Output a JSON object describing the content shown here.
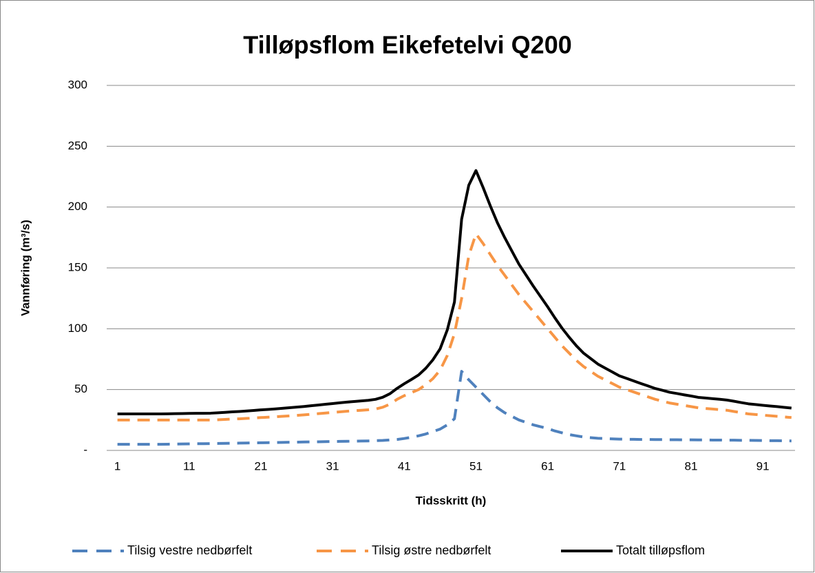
{
  "chart_data": {
    "type": "line",
    "title": "Tilløpsflom Eikefetelvi Q200",
    "x_label": "Tidsskritt (h)",
    "y_label": "Vannføring (m³/s)",
    "x": [
      1,
      2,
      3,
      4,
      5,
      6,
      7,
      8,
      9,
      10,
      11,
      12,
      13,
      14,
      15,
      16,
      17,
      18,
      19,
      20,
      21,
      22,
      23,
      24,
      25,
      26,
      27,
      28,
      29,
      30,
      31,
      32,
      33,
      34,
      35,
      36,
      37,
      38,
      39,
      40,
      41,
      42,
      43,
      44,
      45,
      46,
      47,
      48,
      49,
      50,
      51,
      52,
      53,
      54,
      55,
      56,
      57,
      58,
      59,
      60,
      61,
      62,
      63,
      64,
      65,
      66,
      67,
      68,
      69,
      70,
      71,
      72,
      73,
      74,
      75,
      76,
      77,
      78,
      79,
      80,
      81,
      82,
      83,
      84,
      85,
      86,
      87,
      88,
      89,
      90,
      91,
      92,
      93,
      94,
      95
    ],
    "xlim": [
      -0.5,
      95.5
    ],
    "xticks": [
      1,
      11,
      21,
      31,
      41,
      51,
      61,
      71,
      81,
      91
    ],
    "ylim": [
      0,
      300
    ],
    "yticks": [
      {
        "value": 0,
        "label": "-"
      },
      50,
      100,
      150,
      200,
      250,
      300
    ],
    "grid": true,
    "legend": "bottom",
    "series": [
      {
        "name": "Tilsig vestre nedbørfelt",
        "color": "#4f81bd",
        "line_style": "dashed",
        "values": [
          5,
          5,
          5,
          5,
          5,
          5,
          5,
          5.1,
          5.2,
          5.3,
          5.4,
          5.5,
          5.5,
          5.6,
          5.7,
          5.8,
          5.9,
          6,
          6.1,
          6.2,
          6.3,
          6.4,
          6.5,
          6.6,
          6.7,
          6.8,
          6.9,
          7,
          7.1,
          7.2,
          7.3,
          7.4,
          7.5,
          7.6,
          7.7,
          7.8,
          8,
          8.2,
          8.6,
          9,
          9.8,
          10.8,
          12,
          13.5,
          15.5,
          17.5,
          21,
          26,
          65,
          58,
          52,
          46,
          40,
          35,
          31,
          28,
          25,
          23,
          21,
          19.5,
          18,
          16,
          14.5,
          13,
          12,
          11,
          10.5,
          10,
          9.7,
          9.5,
          9.3,
          9.2,
          9.1,
          9,
          9,
          8.9,
          8.9,
          8.8,
          8.8,
          8.7,
          8.7,
          8.6,
          8.6,
          8.5,
          8.5,
          8.4,
          8.4,
          8.3,
          8.3,
          8.2,
          8.1,
          8,
          8,
          7.9,
          7.8
        ]
      },
      {
        "name": "Tilsig østre nedbørfelt",
        "color": "#f79646",
        "line_style": "dashed",
        "values": [
          25,
          25,
          25,
          25,
          25,
          25,
          25,
          25,
          25,
          25,
          25,
          25,
          25,
          25,
          25.2,
          25.5,
          25.8,
          26,
          26.3,
          26.6,
          27,
          27.3,
          27.6,
          28,
          28.4,
          28.8,
          29.2,
          29.7,
          30.2,
          30.7,
          31.2,
          31.7,
          32.2,
          32.6,
          33,
          33.4,
          34,
          35.5,
          38,
          42,
          45,
          47.5,
          50,
          54,
          59,
          66,
          78,
          96,
          125,
          160,
          178,
          170,
          161,
          152,
          144,
          136,
          128,
          121,
          114,
          107,
          100,
          93,
          86,
          80,
          74,
          69,
          65,
          61,
          58,
          55,
          52,
          50,
          48,
          46,
          44,
          42,
          40.5,
          39,
          38,
          37,
          36,
          35,
          34.5,
          34,
          33.5,
          33,
          32,
          31,
          30,
          29.5,
          29,
          28.5,
          28,
          27.5,
          27
        ]
      },
      {
        "name": "Totalt tilløpsflom",
        "color": "#000000",
        "line_style": "solid",
        "values": [
          30,
          30,
          30,
          30,
          30,
          30,
          30,
          30.1,
          30.2,
          30.3,
          30.4,
          30.5,
          30.5,
          30.6,
          30.9,
          31.3,
          31.7,
          32,
          32.4,
          32.8,
          33.3,
          33.7,
          34.1,
          34.6,
          35.1,
          35.6,
          36.1,
          36.7,
          37.3,
          37.9,
          38.5,
          39.1,
          39.7,
          40.2,
          40.7,
          41.2,
          42,
          43.7,
          46.6,
          51,
          54.8,
          58.3,
          62,
          67.5,
          74.5,
          83.5,
          99,
          122,
          190,
          218,
          230,
          216,
          201,
          187,
          175,
          164,
          153,
          144,
          135,
          126.5,
          118,
          109,
          100.5,
          93,
          86,
          80,
          75.5,
          71,
          67.7,
          64.5,
          61.3,
          59.2,
          57.1,
          55,
          53,
          50.9,
          49.4,
          47.8,
          46.8,
          45.7,
          44.7,
          43.6,
          43.1,
          42.5,
          42,
          41.4,
          40.4,
          39.3,
          38.3,
          37.7,
          37.1,
          36.5,
          36,
          35.4,
          34.8
        ]
      }
    ]
  }
}
